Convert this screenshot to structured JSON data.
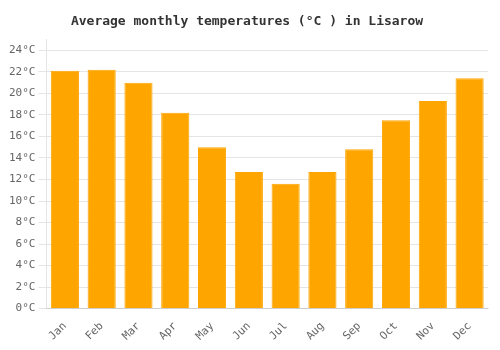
{
  "chart_data": {
    "type": "bar",
    "title": "Average monthly temperatures (°C ) in Lisarow",
    "categories": [
      "Jan",
      "Feb",
      "Mar",
      "Apr",
      "May",
      "Jun",
      "Jul",
      "Aug",
      "Sep",
      "Oct",
      "Nov",
      "Dec"
    ],
    "values": [
      22.1,
      22.2,
      21.0,
      18.2,
      15.0,
      12.7,
      11.6,
      12.7,
      14.8,
      17.5,
      19.3,
      21.4
    ],
    "color": "#FFA500",
    "ylim": [
      0,
      25
    ],
    "yticks": [
      {
        "value": 0,
        "label": "0°C"
      },
      {
        "value": 2,
        "label": "2°C"
      },
      {
        "value": 4,
        "label": "4°C"
      },
      {
        "value": 6,
        "label": "6°C"
      },
      {
        "value": 8,
        "label": "8°C"
      },
      {
        "value": 10,
        "label": "10°C"
      },
      {
        "value": 12,
        "label": "12°C"
      },
      {
        "value": 14,
        "label": "14°C"
      },
      {
        "value": 16,
        "label": "16°C"
      },
      {
        "value": 18,
        "label": "18°C"
      },
      {
        "value": 20,
        "label": "20°C"
      },
      {
        "value": 22,
        "label": "22°C"
      },
      {
        "value": 24,
        "label": "24°C"
      }
    ],
    "grid": true
  }
}
